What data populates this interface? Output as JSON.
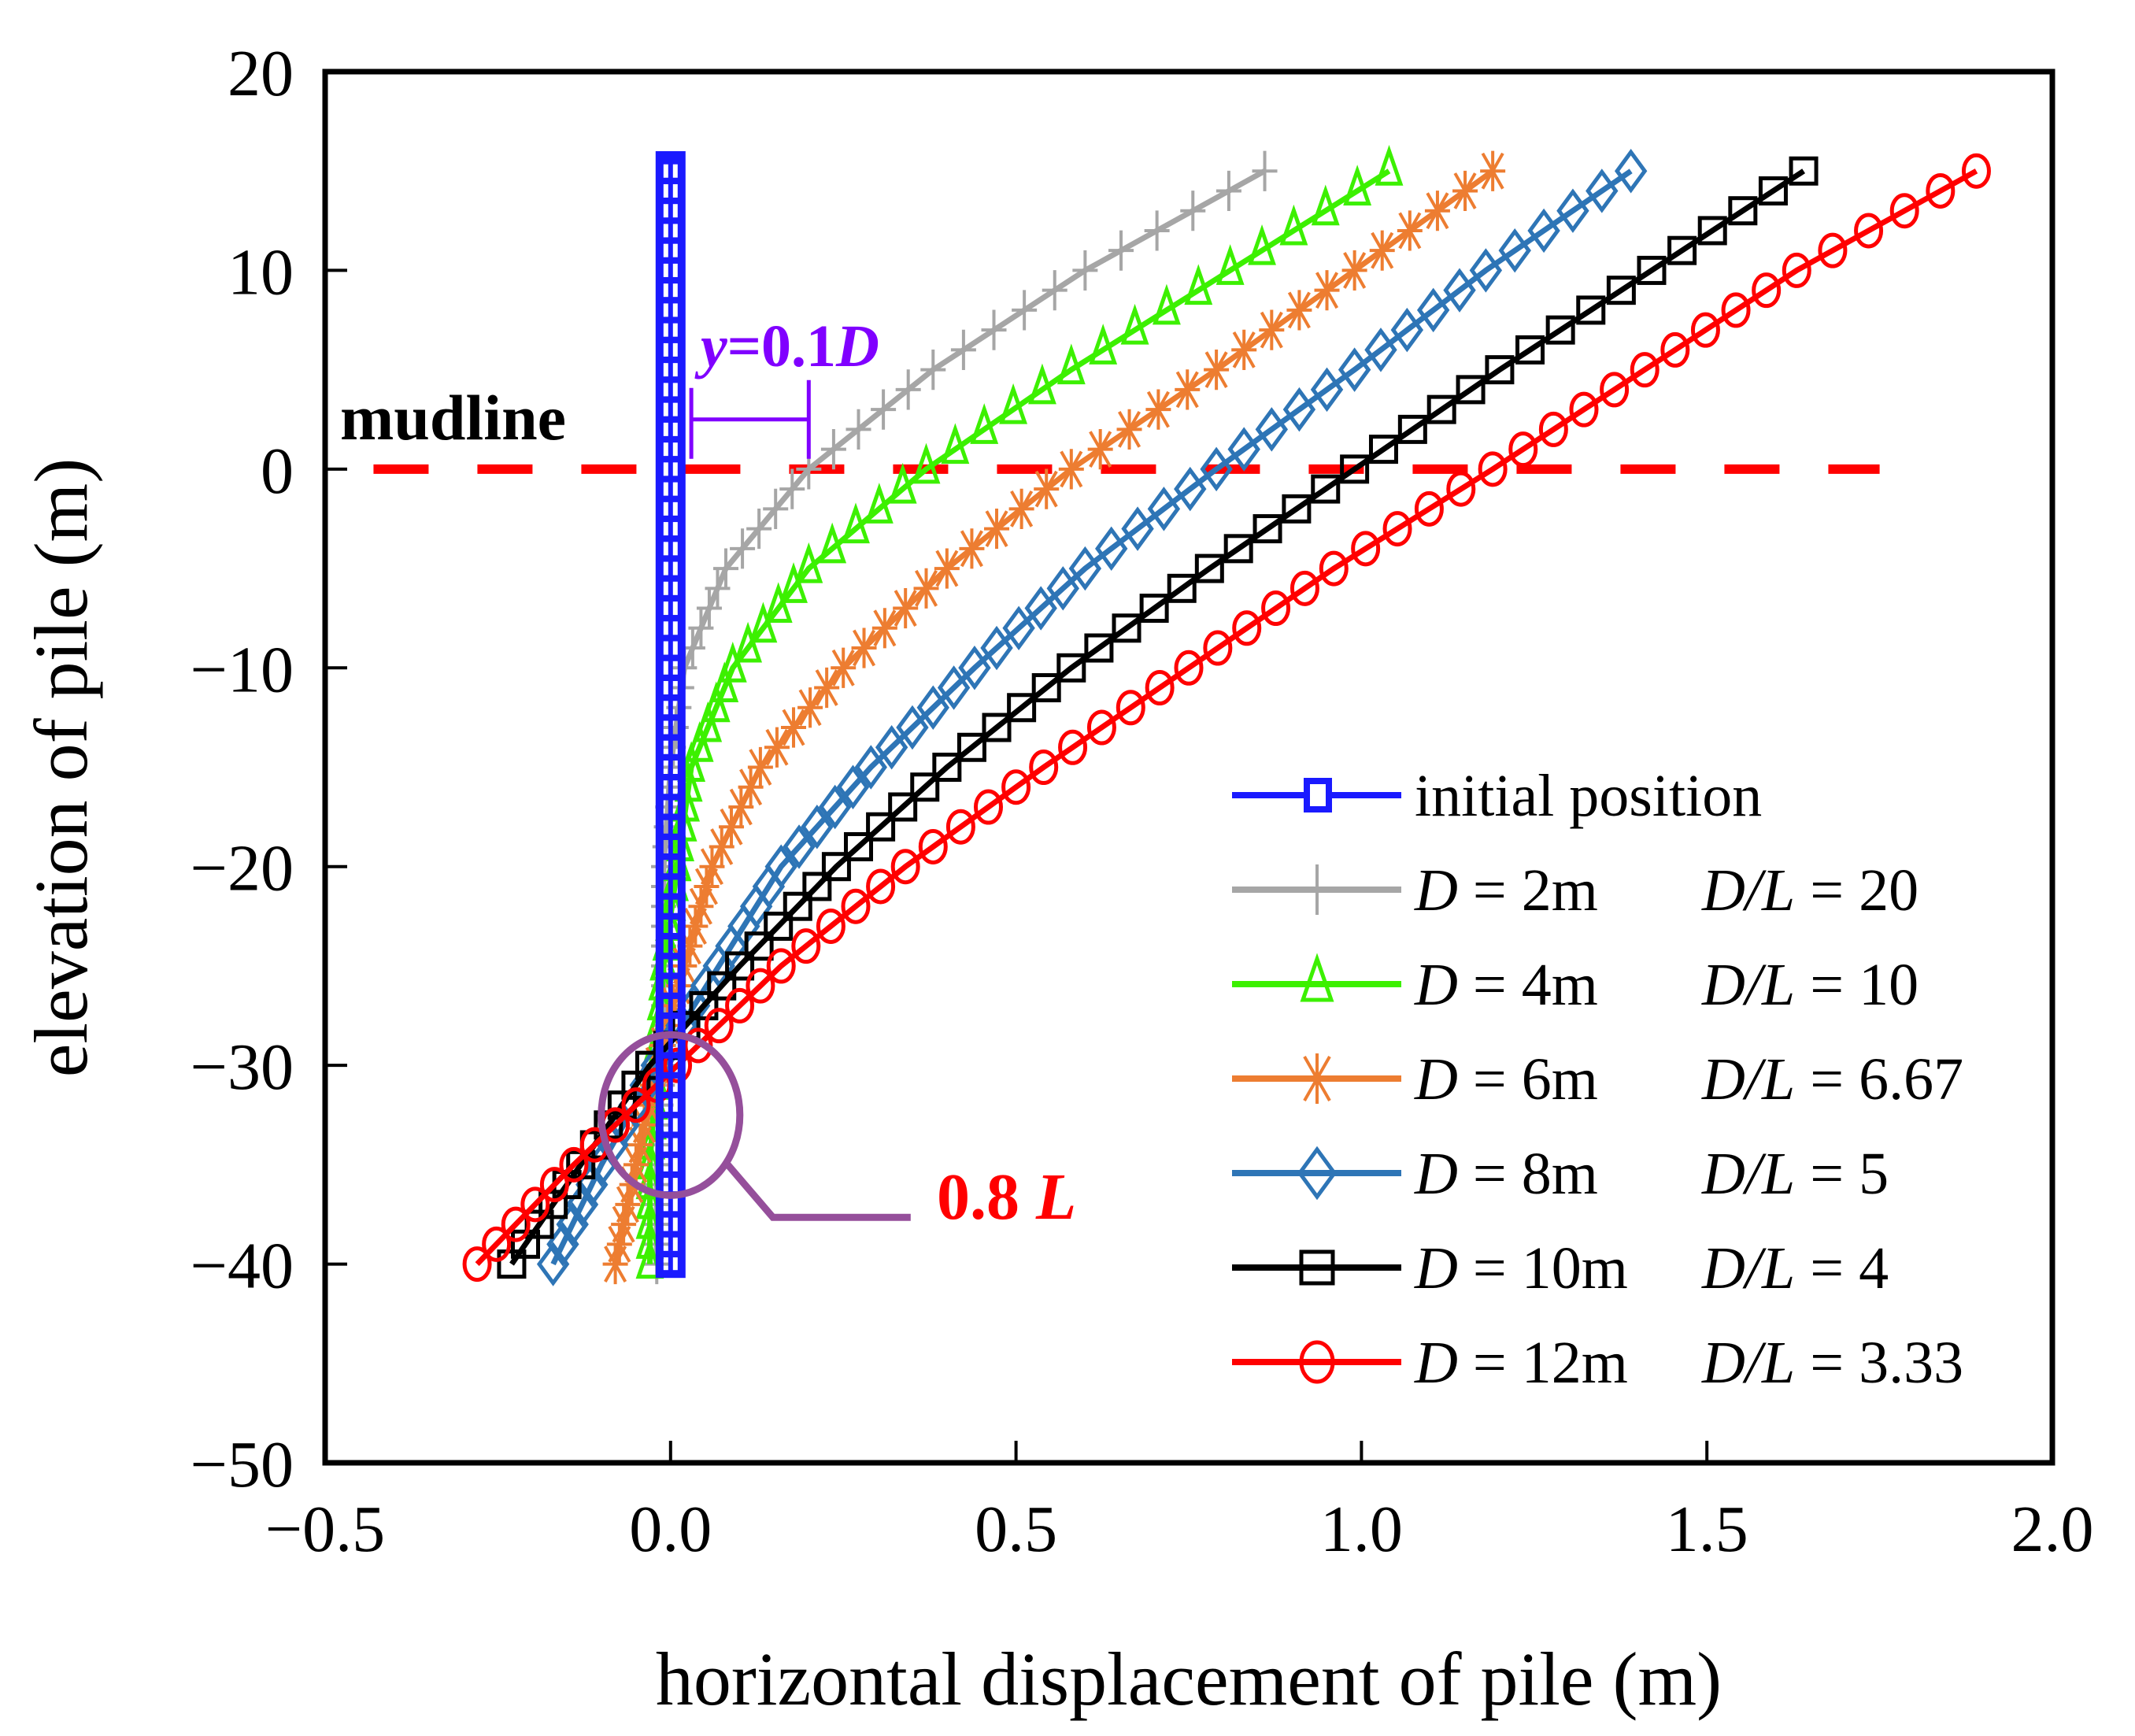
{
  "chart_data": {
    "type": "line",
    "title": "",
    "xlabel": "horizontal displacement of pile (m)",
    "ylabel": "elevation of pile (m)",
    "xlim": [
      -0.5,
      2.0
    ],
    "ylim": [
      -50,
      20
    ],
    "xticks": [
      -0.5,
      0.0,
      0.5,
      1.0,
      1.5,
      2.0
    ],
    "xtick_labels": [
      "−0.5",
      "0.0",
      "0.5",
      "1.0",
      "1.5",
      "2.0"
    ],
    "yticks": [
      20,
      10,
      0,
      -10,
      -20,
      -30,
      -40,
      -50
    ],
    "ytick_labels": [
      "20",
      "10",
      "0",
      "−10",
      "−20",
      "−30",
      "−40",
      "−50"
    ],
    "grid": false,
    "legend_position": "bottom-right",
    "elevations": [
      15,
      10,
      5,
      0,
      -5,
      -10,
      -15,
      -20,
      -25,
      -30,
      -35,
      -40
    ],
    "marker_step_m": 1,
    "series": [
      {
        "name": "initial position",
        "label_d": "",
        "label_dl": "",
        "color": "#1a1aff",
        "marker": "square",
        "values": [
          0,
          0,
          0,
          0,
          0,
          0,
          0,
          0,
          0,
          0,
          0,
          0
        ]
      },
      {
        "name": "D = 2m  D/L = 20",
        "label_d": "D = 2m",
        "label_dl": "D/L = 20",
        "color": "#a6a6a6",
        "marker": "plus",
        "values": [
          0.86,
          0.6,
          0.38,
          0.2,
          0.08,
          0.02,
          0.0,
          -0.01,
          -0.01,
          -0.01,
          -0.02,
          -0.02
        ]
      },
      {
        "name": "D = 4m  D/L = 10",
        "label_d": "D = 4m",
        "label_dl": "D/L = 10",
        "color": "#3cf000",
        "marker": "triangle",
        "values": [
          1.04,
          0.81,
          0.58,
          0.37,
          0.2,
          0.09,
          0.03,
          0.01,
          -0.01,
          -0.02,
          -0.03,
          -0.03
        ]
      },
      {
        "name": "D = 6m  D/L = 6.67",
        "label_d": "D = 6m",
        "label_dl": "D/L = 6.67",
        "color": "#ed7d31",
        "marker": "asterisk",
        "values": [
          1.19,
          0.99,
          0.79,
          0.58,
          0.4,
          0.25,
          0.13,
          0.06,
          0.02,
          -0.02,
          -0.05,
          -0.08
        ]
      },
      {
        "name": "D = 8m  D/L = 5",
        "label_d": "D = 8m",
        "label_dl": "D/L = 5",
        "color": "#2e75b6",
        "marker": "diamond",
        "values": [
          1.39,
          1.18,
          0.99,
          0.79,
          0.6,
          0.44,
          0.29,
          0.16,
          0.07,
          -0.02,
          -0.1,
          -0.17
        ]
      },
      {
        "name": "D = 10m  D/L = 4",
        "label_d": "D = 10m",
        "label_dl": "D/L = 4",
        "color": "#000000",
        "marker": "square",
        "values": [
          1.64,
          1.42,
          1.2,
          0.99,
          0.78,
          0.58,
          0.4,
          0.24,
          0.1,
          -0.03,
          -0.13,
          -0.23
        ]
      },
      {
        "name": "D = 12m  D/L = 3.33",
        "label_d": "D = 12m",
        "label_dl": "D/L = 3.33",
        "color": "#ff0000",
        "marker": "circle",
        "values": [
          1.89,
          1.63,
          1.41,
          1.19,
          0.96,
          0.75,
          0.54,
          0.34,
          0.16,
          0.01,
          -0.14,
          -0.28
        ]
      }
    ],
    "annotations": {
      "mudline": {
        "text": "mudline",
        "elevation": 0,
        "color": "#ff0000",
        "x_range": [
          -0.43,
          1.75
        ]
      },
      "y_bracket": {
        "text_y": "y",
        "text_eq": "=0.1",
        "text_d": "D",
        "color": "#8000ff",
        "x_from": 0.03,
        "x_to": 0.2,
        "elevation": 2.5
      },
      "pivot": {
        "text_num": "0.8 ",
        "text_l": "L",
        "text_color": "#ff0000",
        "circle_color": "#954f9b",
        "x": 0.0,
        "elevation": -32.5
      }
    }
  }
}
